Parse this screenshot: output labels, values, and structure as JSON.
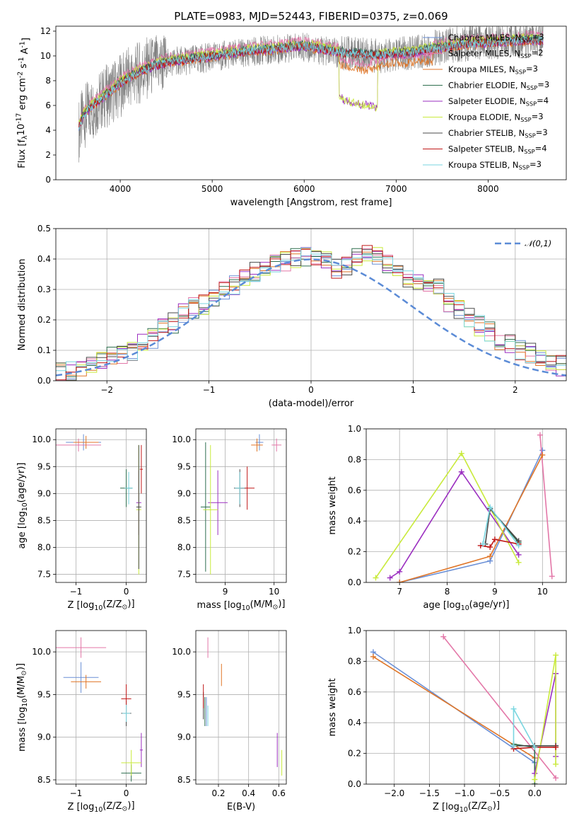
{
  "title": "PLATE=0983, MJD=52443, FIBERID=0375, z=0.069",
  "models": [
    {
      "name": "Chabrier MILES, N$_{SSP}$=3",
      "color": "#6a8fd6"
    },
    {
      "name": "Salpeter MILES, N$_{SSP}$=2",
      "color": "#e377a8"
    },
    {
      "name": "Kroupa MILES, N$_{SSP}$=3",
      "color": "#e07628"
    },
    {
      "name": "Chabrier ELODIE, N$_{SSP}$=3",
      "color": "#2f6f4f"
    },
    {
      "name": "Salpeter ELODIE, N$_{SSP}$=4",
      "color": "#9b2fc0"
    },
    {
      "name": "Kroupa ELODIE, N$_{SSP}$=3",
      "color": "#c9ea3d"
    },
    {
      "name": "Chabrier STELIB, N$_{SSP}$=3",
      "color": "#4a4a4a"
    },
    {
      "name": "Salpeter STELIB, N$_{SSP}$=4",
      "color": "#c01818"
    },
    {
      "name": "Kroupa STELIB, N$_{SSP}$=3",
      "color": "#7ad6e0"
    }
  ],
  "chart_data": [
    {
      "id": "spectrum",
      "type": "line",
      "xlabel": "wavelength [Angstrom, rest frame]",
      "ylabel": "Flux [f$_\\lambda$10$^{-17}$ erg cm$^{-2}$ s$^{-1}$ A$^{-1}$]",
      "xlim": [
        3300,
        8850
      ],
      "ylim": [
        0,
        12.4
      ],
      "xticks": [
        4000,
        5000,
        6000,
        7000,
        8000
      ],
      "yticks": [
        0,
        2,
        4,
        6,
        8,
        10,
        12
      ],
      "data_color": "#808080",
      "data_series": {
        "x": [
          3550,
          3600,
          3650,
          3700,
          3800,
          3900,
          4000,
          4100,
          4200,
          4300,
          4400,
          4500,
          4600,
          4700,
          4800,
          4900,
          5000,
          5100,
          5200,
          5300,
          5400,
          5500,
          5600,
          5700,
          5800,
          5900,
          6000,
          6100,
          6200,
          6300,
          6400,
          6500,
          6600,
          6700,
          6800,
          6900,
          7000,
          7100,
          7200,
          7300,
          7400,
          7500,
          7600,
          7700,
          7800,
          7900,
          8000,
          8100,
          8200,
          8300,
          8400,
          8500,
          8600
        ],
        "y": [
          4.0,
          5.0,
          5.5,
          5.8,
          6.5,
          7.0,
          7.6,
          8.2,
          8.6,
          9.0,
          9.2,
          9.4,
          9.6,
          9.6,
          9.7,
          9.8,
          9.9,
          10.0,
          10.1,
          10.2,
          10.3,
          10.4,
          10.5,
          10.5,
          10.6,
          10.6,
          10.7,
          10.6,
          10.4,
          10.3,
          10.2,
          10.2,
          10.1,
          10.1,
          10.0,
          10.0,
          10.1,
          10.2,
          10.3,
          10.4,
          10.6,
          10.7,
          10.9,
          11.0,
          11.0,
          11.1,
          11.2,
          11.2,
          11.3,
          11.3,
          11.3,
          11.4,
          11.3
        ]
      },
      "model_series": {
        "x": [
          3550,
          3600,
          3700,
          3800,
          3900,
          4000,
          4100,
          4200,
          4300,
          4400,
          4500,
          4600,
          4700,
          4800,
          4900,
          5000,
          5100,
          5200,
          5300,
          5400,
          5500,
          5600,
          5700,
          5800,
          5900,
          6000,
          6100,
          6200,
          6300,
          6400,
          6500,
          6600,
          6700,
          6800,
          7000,
          7200,
          7400,
          7600,
          7800,
          8000,
          8200,
          8400,
          8600
        ],
        "y": [
          4.3,
          5.2,
          6.0,
          6.6,
          7.2,
          7.8,
          8.3,
          8.7,
          9.0,
          9.3,
          9.5,
          9.6,
          9.7,
          9.8,
          9.9,
          10.0,
          10.1,
          10.2,
          10.3,
          10.4,
          10.5,
          10.5,
          10.6,
          10.7,
          10.8,
          10.8,
          10.7,
          10.6,
          10.4,
          10.3,
          10.2,
          10.2,
          10.1,
          10.1,
          10.2,
          10.3,
          10.6,
          10.8,
          11.0,
          11.1,
          11.2,
          11.3,
          11.3
        ]
      },
      "elodie_drop": {
        "x": [
          6380,
          6420,
          6500,
          6600,
          6700,
          6790
        ],
        "y": [
          6.8,
          6.5,
          6.3,
          6.1,
          6.0,
          5.8
        ]
      },
      "miles_drop": {
        "x": [
          6380,
          6450,
          6550,
          6650,
          6750,
          6900,
          7000,
          7100,
          7200,
          7300,
          7400
        ],
        "y": [
          9.3,
          9.1,
          8.9,
          8.8,
          9.0,
          9.3,
          9.5,
          9.4,
          9.5,
          9.6,
          9.6
        ]
      }
    },
    {
      "id": "residuals",
      "type": "line",
      "xlabel": "(data-model)/error",
      "ylabel": "Normed distribution",
      "xlim": [
        -2.5,
        2.5
      ],
      "ylim": [
        0,
        0.5
      ],
      "xticks": [
        -2,
        -1,
        0,
        1,
        2
      ],
      "yticks": [
        0.0,
        0.1,
        0.2,
        0.3,
        0.4,
        0.5
      ],
      "legend": "$\\mathcal{N}(0,1)$",
      "gaussian_color": "#5b8bd6",
      "hist_bin_width": 0.1,
      "hist_base": [
        0.03,
        0.03,
        0.04,
        0.05,
        0.07,
        0.08,
        0.09,
        0.1,
        0.12,
        0.14,
        0.17,
        0.19,
        0.22,
        0.24,
        0.25,
        0.27,
        0.3,
        0.31,
        0.34,
        0.36,
        0.36,
        0.38,
        0.39,
        0.4,
        0.41,
        0.4,
        0.39,
        0.37,
        0.38,
        0.4,
        0.42,
        0.41,
        0.38,
        0.36,
        0.34,
        0.33,
        0.31,
        0.3,
        0.26,
        0.23,
        0.21,
        0.18,
        0.16,
        0.13,
        0.12,
        0.1,
        0.09,
        0.07,
        0.06,
        0.05
      ]
    },
    {
      "id": "age_vs_Z",
      "type": "scatter",
      "xlabel": "Z [log$_{10}$(Z/Z$_\\odot$)]",
      "ylabel": "age  [log$_{10}$(age/yr)]",
      "xlim": [
        -1.4,
        0.4
      ],
      "ylim": [
        7.35,
        10.2
      ],
      "xticks": [
        -1,
        0
      ],
      "yticks": [
        7.5,
        8.0,
        8.5,
        9.0,
        9.5,
        10.0
      ],
      "points": [
        {
          "m": 0,
          "x": -0.85,
          "y": 9.95,
          "xe": 0.35,
          "ye": 0.15
        },
        {
          "m": 1,
          "x": -0.95,
          "y": 9.9,
          "xe": 0.45,
          "ye": 0.12
        },
        {
          "m": 2,
          "x": -0.8,
          "y": 9.95,
          "xe": 0.25,
          "ye": 0.12
        },
        {
          "m": 3,
          "x": 0.0,
          "y": 9.1,
          "xe": 0.12,
          "ye": 0.35
        },
        {
          "m": 4,
          "x": 0.25,
          "y": 8.83,
          "xe": 0.05,
          "ye": 0.6
        },
        {
          "m": 5,
          "x": 0.25,
          "y": 8.7,
          "xe": 0.05,
          "ye": 1.2
        },
        {
          "m": 6,
          "x": 0.25,
          "y": 8.75,
          "xe": 0.05,
          "ye": 1.15
        },
        {
          "m": 7,
          "x": 0.3,
          "y": 9.45,
          "xe": 0.03,
          "ye": 0.45
        },
        {
          "m": 8,
          "x": 0.05,
          "y": 9.1,
          "xe": 0.08,
          "ye": 0.3
        }
      ]
    },
    {
      "id": "age_vs_mass",
      "type": "scatter",
      "xlabel": "mass [log$_{10}$(M/M$_\\odot$)]",
      "ylabel": "",
      "xlim": [
        8.4,
        10.25
      ],
      "ylim": [
        7.35,
        10.2
      ],
      "xticks": [
        9,
        10
      ],
      "yticks": [
        7.5,
        8.0,
        8.5,
        9.0,
        9.5,
        10.0
      ],
      "points": [
        {
          "m": 0,
          "x": 9.7,
          "y": 9.95,
          "xe": 0.08,
          "ye": 0.15
        },
        {
          "m": 1,
          "x": 10.05,
          "y": 9.9,
          "xe": 0.1,
          "ye": 0.12
        },
        {
          "m": 2,
          "x": 9.65,
          "y": 9.9,
          "xe": 0.12,
          "ye": 0.12
        },
        {
          "m": 3,
          "x": 8.6,
          "y": 8.75,
          "xe": 0.1,
          "ye": 1.2
        },
        {
          "m": 4,
          "x": 8.85,
          "y": 8.83,
          "xe": 0.2,
          "ye": 0.6
        },
        {
          "m": 5,
          "x": 8.7,
          "y": 8.7,
          "xe": 0.15,
          "ye": 1.2
        },
        {
          "m": 6,
          "x": 9.3,
          "y": 9.1,
          "xe": 0.12,
          "ye": 0.35
        },
        {
          "m": 7,
          "x": 9.45,
          "y": 9.1,
          "xe": 0.15,
          "ye": 0.4
        },
        {
          "m": 8,
          "x": 9.3,
          "y": 9.1,
          "xe": 0.1,
          "ye": 0.3
        }
      ]
    },
    {
      "id": "weight_vs_age",
      "type": "line",
      "xlabel": "age  [log$_{10}$(age/yr)]",
      "ylabel": "mass weight",
      "xlim": [
        6.3,
        10.5
      ],
      "ylim": [
        0,
        1.0
      ],
      "xticks": [
        7,
        8,
        9,
        10
      ],
      "yticks": [
        0.0,
        0.2,
        0.4,
        0.6,
        0.8,
        1.0
      ],
      "lines": [
        {
          "m": 0,
          "x": [
            7.0,
            8.9,
            10.0
          ],
          "y": [
            0.0,
            0.14,
            0.86
          ]
        },
        {
          "m": 1,
          "x": [
            9.95,
            10.2
          ],
          "y": [
            0.96,
            0.04
          ]
        },
        {
          "m": 2,
          "x": [
            7.0,
            8.9,
            10.0
          ],
          "y": [
            0.0,
            0.17,
            0.83
          ]
        },
        {
          "m": 3,
          "x": [
            8.9,
            9.5
          ],
          "y": [
            0.48,
            0.26
          ]
        },
        {
          "m": 4,
          "x": [
            6.8,
            7.0,
            8.3,
            9.5
          ],
          "y": [
            0.03,
            0.07,
            0.72,
            0.18
          ]
        },
        {
          "m": 5,
          "x": [
            6.5,
            8.3,
            9.5
          ],
          "y": [
            0.03,
            0.84,
            0.13
          ]
        },
        {
          "m": 6,
          "x": [
            8.8,
            8.9,
            9.5
          ],
          "y": [
            0.25,
            0.48,
            0.27
          ]
        },
        {
          "m": 7,
          "x": [
            8.7,
            8.9,
            9.0,
            9.5
          ],
          "y": [
            0.24,
            0.23,
            0.28,
            0.25
          ]
        },
        {
          "m": 8,
          "x": [
            8.75,
            8.9,
            9.5
          ],
          "y": [
            0.25,
            0.49,
            0.24
          ]
        }
      ]
    },
    {
      "id": "mass_vs_Z",
      "type": "scatter",
      "xlabel": "Z [log$_{10}$(Z/Z$_\\odot$)]",
      "ylabel": "mass [log$_{10}$(M/M$_\\odot$)]",
      "xlim": [
        -1.4,
        0.4
      ],
      "ylim": [
        8.45,
        10.25
      ],
      "xticks": [
        -1,
        0
      ],
      "yticks": [
        8.5,
        9.0,
        9.5,
        10.0
      ],
      "points": [
        {
          "m": 0,
          "x": -0.9,
          "y": 9.7,
          "xe": 0.35,
          "ye": 0.18
        },
        {
          "m": 1,
          "x": -0.9,
          "y": 10.05,
          "xe": 0.5,
          "ye": 0.12
        },
        {
          "m": 2,
          "x": -0.8,
          "y": 9.65,
          "xe": 0.3,
          "ye": 0.08
        },
        {
          "m": 3,
          "x": 0.1,
          "y": 8.58,
          "xe": 0.2,
          "ye": 0.1
        },
        {
          "m": 4,
          "x": 0.3,
          "y": 8.85,
          "xe": 0.03,
          "ye": 0.2
        },
        {
          "m": 5,
          "x": 0.1,
          "y": 8.7,
          "xe": 0.2,
          "ye": 0.15
        },
        {
          "m": 6,
          "x": 0.0,
          "y": 9.28,
          "xe": 0.1,
          "ye": 0.15
        },
        {
          "m": 7,
          "x": 0.0,
          "y": 9.45,
          "xe": 0.1,
          "ye": 0.17
        },
        {
          "m": 8,
          "x": 0.0,
          "y": 9.28,
          "xe": 0.08,
          "ye": 0.1
        }
      ]
    },
    {
      "id": "mass_vs_EBV",
      "type": "scatter",
      "xlabel": "E(B-V)",
      "ylabel": "",
      "xlim": [
        0.05,
        0.65
      ],
      "ylim": [
        8.45,
        10.25
      ],
      "xticks": [
        0.2,
        0.4,
        0.6
      ],
      "yticks": [
        8.5,
        9.0,
        9.5,
        10.0
      ],
      "points": [
        {
          "m": 0,
          "x": 0.12,
          "y": 9.3,
          "xe": 0,
          "ye": 0.17
        },
        {
          "m": 1,
          "x": 0.13,
          "y": 10.05,
          "xe": 0,
          "ye": 0.12
        },
        {
          "m": 2,
          "x": 0.22,
          "y": 9.73,
          "xe": 0,
          "ye": 0.13
        },
        {
          "m": 3,
          "x": 0.11,
          "y": 9.3,
          "xe": 0,
          "ye": 0.17
        },
        {
          "m": 4,
          "x": 0.59,
          "y": 8.85,
          "xe": 0,
          "ye": 0.2
        },
        {
          "m": 5,
          "x": 0.62,
          "y": 8.7,
          "xe": 0,
          "ye": 0.15
        },
        {
          "m": 6,
          "x": 0.1,
          "y": 9.37,
          "xe": 0,
          "ye": 0.16
        },
        {
          "m": 7,
          "x": 0.1,
          "y": 9.48,
          "xe": 0,
          "ye": 0.14
        },
        {
          "m": 8,
          "x": 0.13,
          "y": 9.25,
          "xe": 0,
          "ye": 0.12
        }
      ]
    },
    {
      "id": "weight_vs_Z",
      "type": "line",
      "xlabel": "Z [log$_{10}$(Z/Z$_\\odot$)]",
      "ylabel": "mass weight",
      "xlim": [
        -2.4,
        0.45
      ],
      "ylim": [
        0,
        1.0
      ],
      "xticks": [
        -2.0,
        -1.5,
        -1.0,
        -0.5,
        0.0
      ],
      "yticks": [
        0.0,
        0.2,
        0.4,
        0.6,
        0.8,
        1.0
      ],
      "lines": [
        {
          "m": 0,
          "x": [
            -2.3,
            0.0,
            0.0
          ],
          "y": [
            0.86,
            0.14,
            0.0
          ]
        },
        {
          "m": 1,
          "x": [
            -1.3,
            0.3
          ],
          "y": [
            0.96,
            0.04
          ]
        },
        {
          "m": 2,
          "x": [
            -2.3,
            0.0,
            0.0
          ],
          "y": [
            0.83,
            0.17,
            0.0
          ]
        },
        {
          "m": 3,
          "x": [
            -0.3,
            0.0,
            0.0
          ],
          "y": [
            0.26,
            0.24,
            0.0
          ]
        },
        {
          "m": 4,
          "x": [
            0.0,
            0.3,
            0.3
          ],
          "y": [
            0.07,
            0.72,
            0.18
          ]
        },
        {
          "m": 5,
          "x": [
            0.0,
            0.3,
            0.3
          ],
          "y": [
            0.03,
            0.84,
            0.13
          ]
        },
        {
          "m": 6,
          "x": [
            -0.3,
            0.0,
            0.3
          ],
          "y": [
            0.25,
            0.25,
            0.25
          ]
        },
        {
          "m": 7,
          "x": [
            -0.3,
            0.0,
            0.3
          ],
          "y": [
            0.23,
            0.24,
            0.24
          ]
        },
        {
          "m": 8,
          "x": [
            -0.3,
            -0.3,
            0.0
          ],
          "y": [
            0.25,
            0.49,
            0.24
          ]
        }
      ]
    }
  ]
}
